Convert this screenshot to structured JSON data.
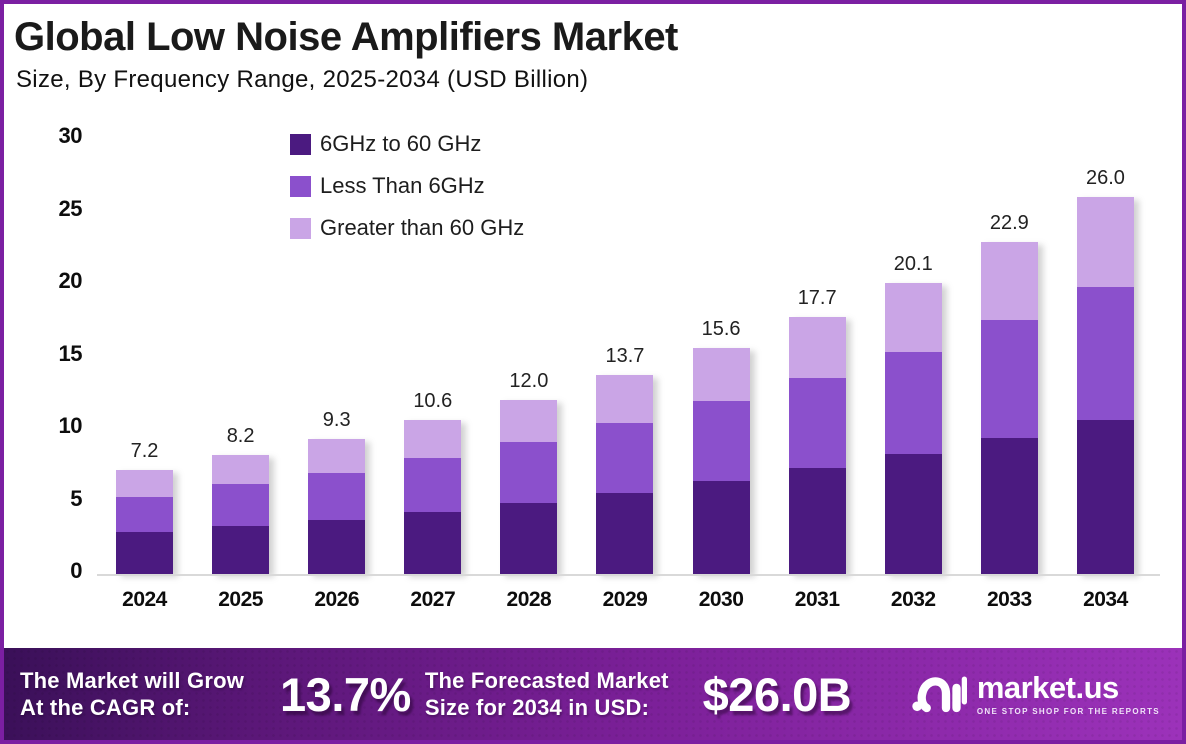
{
  "header": {
    "title": "Global Low Noise Amplifiers Market",
    "subtitle": "Size, By Frequency Range, 2025-2034 (USD Billion)"
  },
  "chart_data": {
    "type": "bar",
    "stacked": true,
    "title": "Global Low Noise Amplifiers Market Size, By Frequency Range, 2025-2034 (USD Billion)",
    "categories": [
      "2024",
      "2025",
      "2026",
      "2027",
      "2028",
      "2029",
      "2030",
      "2031",
      "2032",
      "2033",
      "2034"
    ],
    "series": [
      {
        "name": "6GHz to 60 GHz",
        "color": "#4B1A80",
        "values": [
          2.9,
          3.3,
          3.7,
          4.3,
          4.9,
          5.6,
          6.4,
          7.3,
          8.3,
          9.4,
          10.6
        ]
      },
      {
        "name": "Less Than 6GHz",
        "color": "#8B50CC",
        "values": [
          2.4,
          2.9,
          3.3,
          3.7,
          4.2,
          4.8,
          5.5,
          6.2,
          7.0,
          8.1,
          9.2
        ]
      },
      {
        "name": "Greater than 60 GHz",
        "color": "#CAA5E6",
        "values": [
          1.9,
          2.0,
          2.3,
          2.6,
          2.9,
          3.3,
          3.7,
          4.2,
          4.8,
          5.4,
          6.2
        ]
      }
    ],
    "totals": [
      7.2,
      8.2,
      9.3,
      10.6,
      12.0,
      13.7,
      15.6,
      17.7,
      20.1,
      22.9,
      26.0
    ],
    "xlabel": "",
    "ylabel": "",
    "ylim": [
      0,
      30
    ],
    "yticks": [
      0,
      5,
      10,
      15,
      20,
      25,
      30
    ],
    "grid": false,
    "legend_position": "top-center"
  },
  "footer": {
    "cagr_label_line1": "The Market will Grow",
    "cagr_label_line2": "At the CAGR of:",
    "cagr_value": "13.7%",
    "forecast_label_line1": "The Forecasted Market",
    "forecast_label_line2": "Size for 2034 in USD:",
    "forecast_value": "$26.0B",
    "logo_text": "market.us",
    "logo_tagline": "ONE STOP SHOP FOR THE REPORTS"
  },
  "colors": {
    "frame_border": "#7B1FA2",
    "footer_gradient_start": "#3A1058",
    "footer_gradient_end": "#9C32BA",
    "baseline": "#D9D9D9",
    "text": "#1A1A1A"
  }
}
